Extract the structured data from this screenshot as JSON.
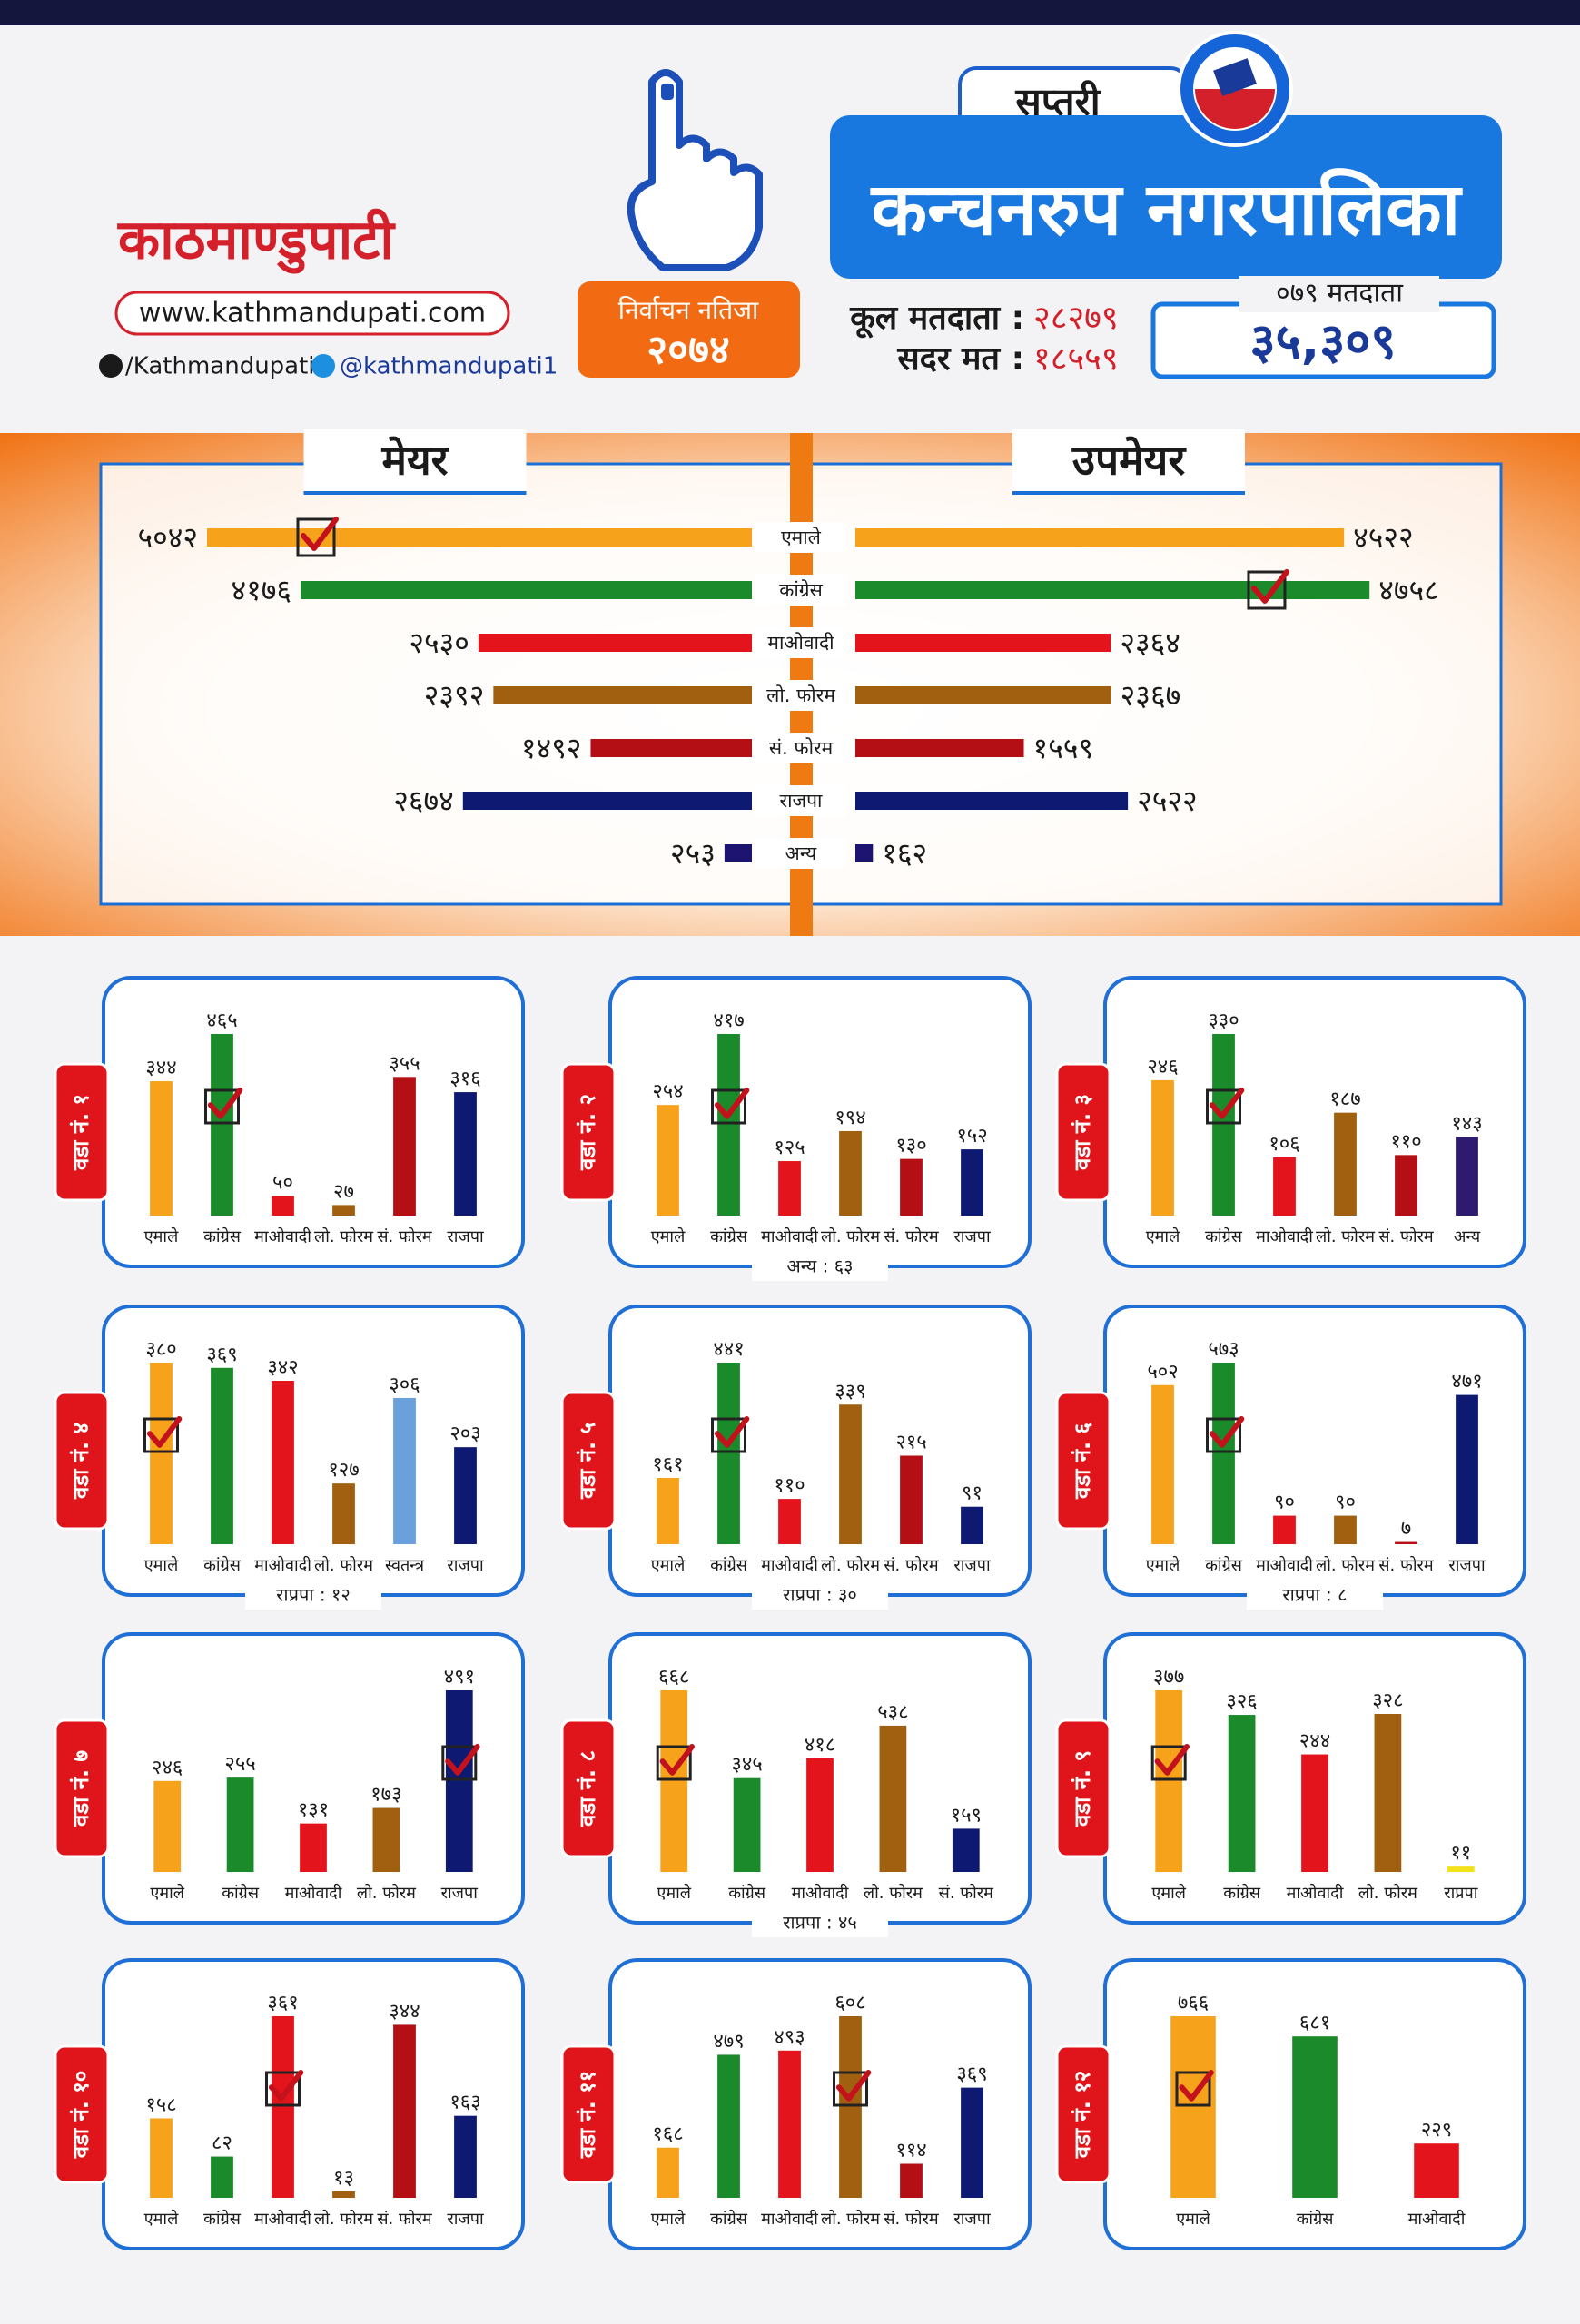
{
  "header": {
    "logo": "काठमाण्डुपाटी",
    "website": "www.kathmandupati.com",
    "facebook": "/Kathmandupati",
    "twitter": "@kathmandupati1",
    "badge_title": "निर्वाचन नतिजा",
    "badge_year": "२०७४",
    "district": "सप्तरी",
    "municipality": "कन्चनरुप नगरपालिका",
    "total_voters_label": "कूल मतदाता :",
    "total_voters": "२८२७९",
    "valid_votes_label": "सदर मत :",
    "valid_votes": "१८५५९",
    "voters_079_label": "०७९ मतदाता",
    "voters_079": "३५,३०९"
  },
  "chart_data": [
    {
      "type": "butterfly",
      "categories": [
        "एमाले",
        "कांग्रेस",
        "माओवादी",
        "लो. फोरम",
        "सं. फोरम",
        "राजपा",
        "अन्य"
      ],
      "colors": [
        "#f7a21b",
        "#1a8a2a",
        "#e3141b",
        "#a0600f",
        "#b30f14",
        "#0e1a72",
        "#1c1470"
      ],
      "series": [
        {
          "name": "मेयर",
          "values": [
            5042,
            4176,
            2530,
            2392,
            1492,
            2674,
            253
          ],
          "value_labels": [
            "५०४२",
            "४१७६",
            "२५३०",
            "२३९२",
            "१४९२",
            "२६७४",
            "२५३"
          ],
          "winner": 0
        },
        {
          "name": "उपमेयर",
          "values": [
            4522,
            4758,
            2364,
            2367,
            1559,
            2522,
            162
          ],
          "value_labels": [
            "४५२२",
            "४७५८",
            "२३६४",
            "२३६७",
            "१५५९",
            "२५२२",
            "१६२"
          ],
          "winner": 1
        }
      ]
    },
    {
      "type": "bar",
      "title": "वडा नं. १",
      "categories": [
        "एमाले",
        "कांग्रेस",
        "माओवादी",
        "लो. फोरम",
        "सं. फोरम",
        "राजपा"
      ],
      "colors": [
        "#f7a21b",
        "#1a8a2a",
        "#e3141b",
        "#a0600f",
        "#b30f14",
        "#0e1a72"
      ],
      "values": [
        344,
        465,
        50,
        27,
        355,
        316
      ],
      "value_labels": [
        "३४४",
        "४६५",
        "५०",
        "२७",
        "३५५",
        "३१६"
      ],
      "winner": 1
    },
    {
      "type": "bar",
      "title": "वडा नं. २",
      "categories": [
        "एमाले",
        "कांग्रेस",
        "माओवादी",
        "लो. फोरम",
        "सं. फोरम",
        "राजपा"
      ],
      "colors": [
        "#f7a21b",
        "#1a8a2a",
        "#e3141b",
        "#a0600f",
        "#b30f14",
        "#0e1a72"
      ],
      "values": [
        254,
        417,
        125,
        194,
        130,
        152
      ],
      "value_labels": [
        "२५४",
        "४१७",
        "१२५",
        "१९४",
        "१३०",
        "१५२"
      ],
      "winner": 1,
      "note": "अन्य : ६३"
    },
    {
      "type": "bar",
      "title": "वडा नं. ३",
      "categories": [
        "एमाले",
        "कांग्रेस",
        "माओवादी",
        "लो. फोरम",
        "सं. फोरम",
        "अन्य"
      ],
      "colors": [
        "#f7a21b",
        "#1a8a2a",
        "#e3141b",
        "#a0600f",
        "#b30f14",
        "#2e1a6e"
      ],
      "values": [
        246,
        330,
        106,
        187,
        110,
        143
      ],
      "value_labels": [
        "२४६",
        "३३०",
        "१०६",
        "१८७",
        "११०",
        "१४३"
      ],
      "winner": 1
    },
    {
      "type": "bar",
      "title": "वडा नं. ४",
      "categories": [
        "एमाले",
        "कांग्रेस",
        "माओवादी",
        "लो. फोरम",
        "स्वतन्त्र",
        "राजपा"
      ],
      "colors": [
        "#f7a21b",
        "#1a8a2a",
        "#e3141b",
        "#a0600f",
        "#6aa0dc",
        "#0e1a72"
      ],
      "values": [
        380,
        369,
        342,
        127,
        306,
        203
      ],
      "value_labels": [
        "३८०",
        "३६९",
        "३४२",
        "१२७",
        "३०६",
        "२०३"
      ],
      "winner": 0,
      "note": "राप्रपा : १२"
    },
    {
      "type": "bar",
      "title": "वडा नं. ५",
      "categories": [
        "एमाले",
        "कांग्रेस",
        "माओवादी",
        "लो. फोरम",
        "सं. फोरम",
        "राजपा"
      ],
      "colors": [
        "#f7a21b",
        "#1a8a2a",
        "#e3141b",
        "#a0600f",
        "#b30f14",
        "#0e1a72"
      ],
      "values": [
        161,
        441,
        110,
        339,
        215,
        91
      ],
      "value_labels": [
        "१६१",
        "४४१",
        "११०",
        "३३९",
        "२१५",
        "९१"
      ],
      "winner": 1,
      "note": "राप्रपा : ३०"
    },
    {
      "type": "bar",
      "title": "वडा नं. ६",
      "categories": [
        "एमाले",
        "कांग्रेस",
        "माओवादी",
        "लो. फोरम",
        "सं. फोरम",
        "राजपा"
      ],
      "colors": [
        "#f7a21b",
        "#1a8a2a",
        "#e3141b",
        "#a0600f",
        "#b30f14",
        "#0e1a72"
      ],
      "values": [
        502,
        573,
        90,
        90,
        7,
        471
      ],
      "value_labels": [
        "५०२",
        "५७३",
        "९०",
        "९०",
        "७",
        "४७१"
      ],
      "winner": 1,
      "note": "राप्रपा : ८"
    },
    {
      "type": "bar",
      "title": "वडा नं. ७",
      "categories": [
        "एमाले",
        "कांग्रेस",
        "माओवादी",
        "लो. फोरम",
        "राजपा"
      ],
      "colors": [
        "#f7a21b",
        "#1a8a2a",
        "#e3141b",
        "#a0600f",
        "#0e1a72"
      ],
      "values": [
        246,
        255,
        131,
        173,
        491
      ],
      "value_labels": [
        "२४६",
        "२५५",
        "१३१",
        "१७३",
        "४९१"
      ],
      "winner": 4
    },
    {
      "type": "bar",
      "title": "वडा नं. ८",
      "categories": [
        "एमाले",
        "कांग्रेस",
        "माओवादी",
        "लो. फोरम",
        "सं. फोरम"
      ],
      "colors": [
        "#f7a21b",
        "#1a8a2a",
        "#e3141b",
        "#a0600f",
        "#0e1a72"
      ],
      "values": [
        668,
        345,
        418,
        538,
        159
      ],
      "value_labels": [
        "६६८",
        "३४५",
        "४१८",
        "५३८",
        "१५९"
      ],
      "winner": 0,
      "note": "राप्रपा : ४५"
    },
    {
      "type": "bar",
      "title": "वडा नं. ९",
      "categories": [
        "एमाले",
        "कांग्रेस",
        "माओवादी",
        "लो. फोरम",
        "राप्रपा"
      ],
      "colors": [
        "#f7a21b",
        "#1a8a2a",
        "#e3141b",
        "#a0600f",
        "#f2e21a"
      ],
      "values": [
        377,
        326,
        244,
        328,
        11
      ],
      "value_labels": [
        "३७७",
        "३२६",
        "२४४",
        "३२८",
        "११"
      ],
      "winner": 0
    },
    {
      "type": "bar",
      "title": "वडा नं. १०",
      "categories": [
        "एमाले",
        "कांग्रेस",
        "माओवादी",
        "लो. फोरम",
        "सं. फोरम",
        "राजपा"
      ],
      "colors": [
        "#f7a21b",
        "#1a8a2a",
        "#e3141b",
        "#a0600f",
        "#b30f14",
        "#0e1a72"
      ],
      "values": [
        158,
        82,
        361,
        13,
        344,
        163
      ],
      "value_labels": [
        "१५८",
        "८२",
        "३६१",
        "१३",
        "३४४",
        "१६३"
      ],
      "winner": 2
    },
    {
      "type": "bar",
      "title": "वडा नं. ११",
      "categories": [
        "एमाले",
        "कांग्रेस",
        "माओवादी",
        "लो. फोरम",
        "सं. फोरम",
        "राजपा"
      ],
      "colors": [
        "#f7a21b",
        "#1a8a2a",
        "#e3141b",
        "#a0600f",
        "#b30f14",
        "#0e1a72"
      ],
      "values": [
        168,
        479,
        493,
        608,
        114,
        369
      ],
      "value_labels": [
        "१६८",
        "४७९",
        "४९३",
        "६०८",
        "११४",
        "३६९"
      ],
      "winner": 3
    },
    {
      "type": "bar",
      "title": "वडा नं. १२",
      "categories": [
        "एमाले",
        "कांग्रेस",
        "माओवादी"
      ],
      "colors": [
        "#f7a21b",
        "#1a8a2a",
        "#e3141b"
      ],
      "values": [
        766,
        681,
        229
      ],
      "value_labels": [
        "७६६",
        "६८१",
        "२२९"
      ],
      "winner": 0
    }
  ]
}
